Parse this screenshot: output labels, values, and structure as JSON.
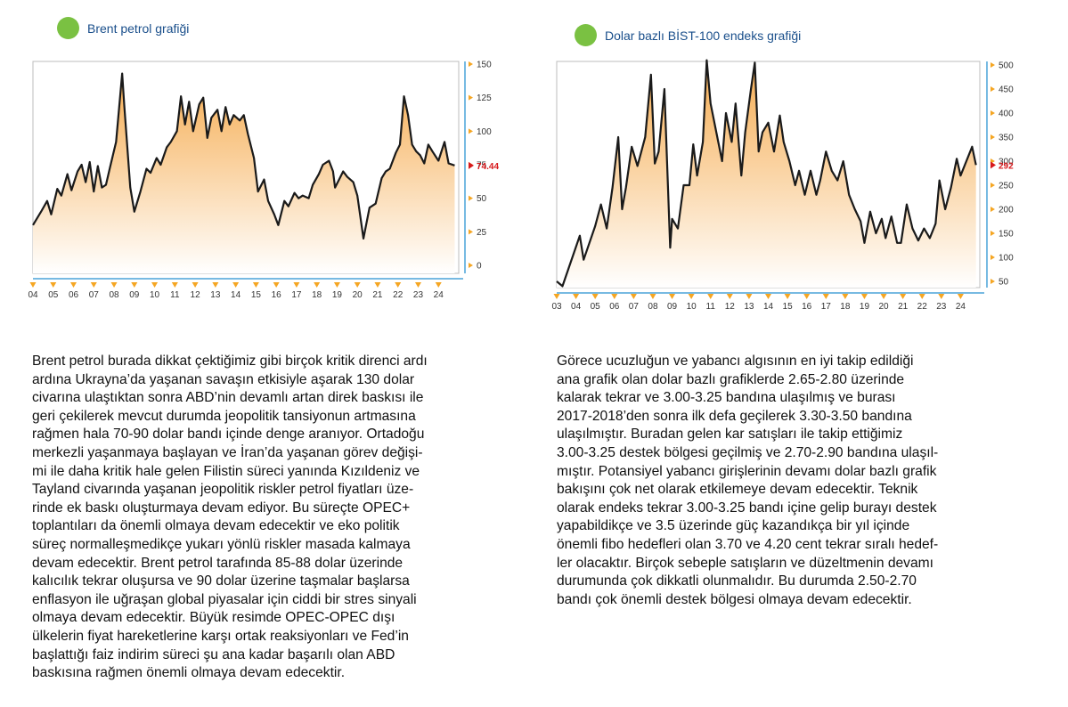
{
  "chart_data": [
    {
      "type": "area",
      "title": "Brent petrol grafiği",
      "xlabel": "",
      "ylabel": "",
      "x_tick_labels": [
        "04",
        "05",
        "06",
        "07",
        "08",
        "09",
        "10",
        "11",
        "12",
        "13",
        "14",
        "15",
        "16",
        "17",
        "18",
        "19",
        "20",
        "21",
        "22",
        "23",
        "24"
      ],
      "y_ticks": [
        0,
        25,
        50,
        75,
        100,
        125,
        150
      ],
      "ylim": [
        0,
        150
      ],
      "xlim": [
        2004,
        2025
      ],
      "last_value_label": "74.44",
      "last_value": 74.44,
      "series": [
        {
          "name": "Brent",
          "x": [
            2004,
            2004.4,
            2004.7,
            2004.9,
            2005.2,
            2005.4,
            2005.7,
            2005.9,
            2006.2,
            2006.4,
            2006.6,
            2006.8,
            2007.0,
            2007.2,
            2007.4,
            2007.6,
            2007.8,
            2008.1,
            2008.4,
            2008.5,
            2008.8,
            2009.0,
            2009.3,
            2009.6,
            2009.8,
            2010.1,
            2010.3,
            2010.6,
            2010.8,
            2011.1,
            2011.3,
            2011.5,
            2011.7,
            2011.9,
            2012.2,
            2012.4,
            2012.6,
            2012.8,
            2013.1,
            2013.3,
            2013.5,
            2013.7,
            2013.9,
            2014.2,
            2014.4,
            2014.6,
            2014.9,
            2015.1,
            2015.4,
            2015.6,
            2015.9,
            2016.1,
            2016.4,
            2016.6,
            2016.9,
            2017.1,
            2017.3,
            2017.6,
            2017.8,
            2018.1,
            2018.3,
            2018.6,
            2018.8,
            2018.9,
            2019.1,
            2019.3,
            2019.5,
            2019.8,
            2020.0,
            2020.3,
            2020.6,
            2020.9,
            2021.2,
            2021.4,
            2021.6,
            2021.9,
            2022.1,
            2022.3,
            2022.5,
            2022.7,
            2022.9,
            2023.1,
            2023.3,
            2023.5,
            2023.7,
            2024.0,
            2024.3,
            2024.5,
            2024.8
          ],
          "y": [
            30,
            40,
            48,
            38,
            57,
            52,
            68,
            56,
            70,
            75,
            62,
            77,
            55,
            74,
            58,
            60,
            73,
            92,
            143,
            120,
            58,
            40,
            55,
            72,
            69,
            80,
            75,
            88,
            92,
            100,
            126,
            105,
            122,
            100,
            120,
            125,
            95,
            110,
            116,
            100,
            118,
            105,
            112,
            108,
            112,
            98,
            80,
            55,
            64,
            48,
            38,
            30,
            48,
            44,
            54,
            50,
            52,
            50,
            60,
            68,
            75,
            78,
            70,
            58,
            64,
            70,
            66,
            62,
            52,
            20,
            43,
            46,
            65,
            70,
            72,
            84,
            90,
            126,
            112,
            90,
            85,
            82,
            76,
            90,
            85,
            78,
            92,
            76,
            74.44
          ]
        }
      ]
    },
    {
      "type": "area",
      "title": "Dolar bazlı BİST-100 endeks grafiği",
      "xlabel": "",
      "ylabel": "",
      "x_tick_labels": [
        "03",
        "04",
        "05",
        "06",
        "07",
        "08",
        "09",
        "10",
        "11",
        "12",
        "13",
        "14",
        "15",
        "16",
        "17",
        "18",
        "19",
        "20",
        "21",
        "22",
        "23",
        "24"
      ],
      "y_ticks": [
        50,
        100,
        150,
        200,
        250,
        300,
        350,
        400,
        450,
        500
      ],
      "ylim": [
        50,
        500
      ],
      "xlim": [
        2003,
        2025
      ],
      "last_value_label": "292",
      "last_value": 292,
      "series": [
        {
          "name": "BIST-100 USD",
          "x": [
            2003,
            2003.3,
            2003.6,
            2003.9,
            2004.2,
            2004.4,
            2004.7,
            2005.0,
            2005.3,
            2005.6,
            2005.9,
            2006.2,
            2006.4,
            2006.6,
            2006.9,
            2007.2,
            2007.4,
            2007.6,
            2007.9,
            2008.1,
            2008.3,
            2008.6,
            2008.9,
            2009.0,
            2009.3,
            2009.6,
            2009.9,
            2010.1,
            2010.3,
            2010.6,
            2010.8,
            2011.0,
            2011.3,
            2011.6,
            2011.8,
            2012.1,
            2012.3,
            2012.6,
            2012.8,
            2013.1,
            2013.3,
            2013.5,
            2013.7,
            2014.0,
            2014.3,
            2014.6,
            2014.8,
            2015.1,
            2015.4,
            2015.6,
            2015.9,
            2016.2,
            2016.5,
            2016.7,
            2017.0,
            2017.3,
            2017.6,
            2017.9,
            2018.2,
            2018.5,
            2018.8,
            2019.0,
            2019.3,
            2019.6,
            2019.9,
            2020.1,
            2020.4,
            2020.7,
            2020.9,
            2021.2,
            2021.5,
            2021.8,
            2022.1,
            2022.4,
            2022.7,
            2022.9,
            2023.2,
            2023.5,
            2023.8,
            2024.0,
            2024.3,
            2024.6,
            2024.8
          ],
          "y": [
            50,
            40,
            75,
            110,
            145,
            95,
            130,
            165,
            210,
            160,
            245,
            350,
            200,
            245,
            330,
            290,
            320,
            350,
            480,
            295,
            320,
            450,
            120,
            180,
            160,
            250,
            250,
            335,
            270,
            340,
            510,
            420,
            360,
            300,
            400,
            340,
            420,
            270,
            360,
            450,
            505,
            320,
            360,
            380,
            320,
            395,
            340,
            300,
            250,
            280,
            230,
            280,
            230,
            260,
            320,
            280,
            260,
            300,
            230,
            200,
            175,
            130,
            195,
            150,
            180,
            140,
            185,
            130,
            130,
            210,
            160,
            135,
            160,
            140,
            170,
            260,
            200,
            245,
            305,
            270,
            300,
            330,
            292
          ]
        }
      ]
    }
  ],
  "left_text": "Brent petrol burada dikkat çektiğimiz gibi birçok kritik direnci ardı\nardına Ukrayna’da yaşanan savaşın etkisiyle aşarak 130 dolar\ncivarına ulaştıktan sonra ABD’nin devamlı artan direk baskısı ile\ngeri çekilerek mevcut durumda jeopolitik tansiyonun artmasına\nrağmen hala 70-90 dolar bandı içinde denge aranıyor. Ortadoğu\nmerkezli yaşanmaya başlayan ve İran’da yaşanan görev değişi-\nmi ile daha kritik hale gelen Filistin süreci yanında Kızıldeniz ve\nTayland civarında yaşanan jeopolitik riskler petrol fiyatları üze-\nrinde ek baskı oluşturmaya devam ediyor. Bu süreçte OPEC+\ntoplantıları da önemli olmaya devam edecektir ve eko politik\nsüreç normalleşmedikçe yukarı yönlü riskler masada kalmaya\ndevam edecektir. Brent petrol tarafında 85-88 dolar üzerinde\nkalıcılık tekrar oluşursa ve 90 dolar üzerine taşmalar başlarsa\nenflasyon ile uğraşan global piyasalar için ciddi bir stres sinyali\nolmaya devam edecektir. Büyük resimde OPEC-OPEC dışı\nülkelerin fiyat hareketlerine karşı ortak reaksiyonları ve Fed’in\nbaşlattığı faiz indirim süreci şu ana kadar başarılı olan ABD\nbaskısına rağmen önemli olmaya devam edecektir.",
  "right_text": "Görece ucuzluğun ve yabancı algısının en iyi takip edildiği\nana grafik olan dolar bazlı grafiklerde 2.65-2.80 üzerinde\nkalarak tekrar ve 3.00-3.25 bandına ulaşılmış ve burası\n2017-2018’den sonra ilk defa geçilerek 3.30-3.50 bandına\nulaşılmıştır. Buradan gelen kar satışları ile takip ettiğimiz\n3.00-3.25 destek bölgesi geçilmiş ve 2.70-2.90 bandına ulaşıl-\nmıştır. Potansiyel yabancı girişlerinin devamı dolar bazlı grafik\nbakışını çok net olarak etkilemeye devam edecektir. Teknik\nolarak endeks tekrar 3.00-3.25 bandı içine gelip burayı destek\nyapabildikçe ve 3.5 üzerinde güç kazandıkça bir yıl içinde\nönemli fibo hedefleri olan 3.70 ve 4.20 cent tekrar sıralı hedef-\nler olacaktır. Birçok sebeple satışların ve düzeltmenin devamı\ndurumunda çok dikkatli olunmalıdır. Bu durumda 2.50-2.70\nbandı çok önemli destek bölgesi olmaya devam edecektir.",
  "colors": {
    "dot": "#7ac142",
    "title": "#1a4f8b",
    "axis": "#4aa3d9",
    "marker": "#f5a623",
    "line": "#1a1a1a",
    "fill_top": "#f5a94a",
    "fill_bottom": "#ffffff",
    "last_value": "#d7191c"
  }
}
